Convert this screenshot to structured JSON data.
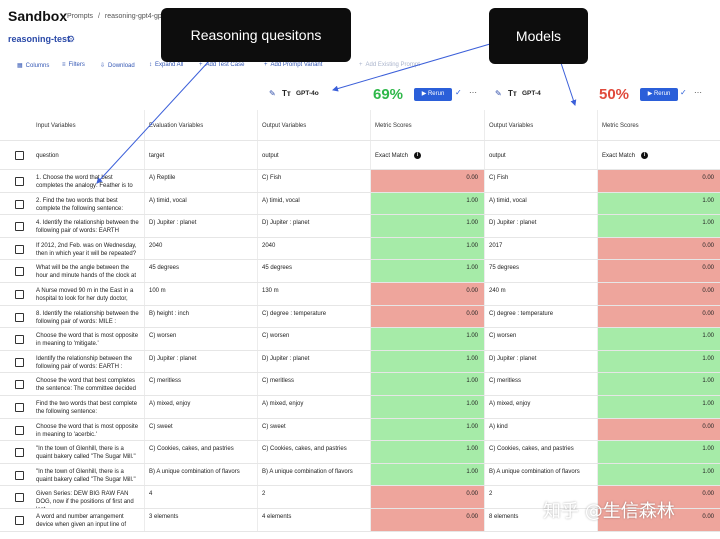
{
  "app": {
    "title": "Sandbox",
    "breadcrumb_root": "Prompts",
    "breadcrumb_sep": "/",
    "breadcrumb_page": "reasoning-gpt4-gpt",
    "project_name": "reasoning-test",
    "project_icon": "gear-icon"
  },
  "toolbar": {
    "columns": "Columns",
    "filters": "Filters",
    "download": "Download",
    "expand": "Expand All",
    "add_case": "Add Test Case",
    "add_prompt": "Add Prompt Variant",
    "add_existing": "Add Existing Prompt"
  },
  "models": [
    {
      "name": "GPT-4o",
      "score": "69%",
      "score_color": "#2fb84a",
      "rerun": "Rerun"
    },
    {
      "name": "GPT-4",
      "score": "50%",
      "score_color": "#e04a3c",
      "rerun": "Rerun"
    }
  ],
  "columns": {
    "input": "Input Variables",
    "eval": "Evaluation Variables",
    "output": "Output Variables",
    "metric": "Metric Scores"
  },
  "subcolumns": {
    "question": "question",
    "target": "target",
    "output": "output",
    "exact_match": "Exact Match"
  },
  "rows": [
    {
      "q": "1. Choose the word that best completes the analogy: Feather is to",
      "t": "A) Reptile",
      "o1": "C) Fish",
      "s1": "0.00",
      "o2": "C) Fish",
      "s2": "0.00"
    },
    {
      "q": "2. Find the two words that best complete the following sentence:",
      "t": "A) timid, vocal",
      "o1": "A) timid, vocal",
      "s1": "1.00",
      "o2": "A) timid, vocal",
      "s2": "1.00"
    },
    {
      "q": "4. Identify the relationship between the following pair of words: EARTH",
      "t": "D) Jupiter : planet",
      "o1": "D) Jupiter : planet",
      "s1": "1.00",
      "o2": "D) Jupiter : planet",
      "s2": "1.00"
    },
    {
      "q": "If 2012, 2nd Feb. was on Wednesday, then in which year it will be repeated?",
      "t": "2040",
      "o1": "2040",
      "s1": "1.00",
      "o2": "2017",
      "s2": "0.00"
    },
    {
      "q": "What will be the angle between the hour and minute hands of the clock at",
      "t": "45 degrees",
      "o1": "45 degrees",
      "s1": "1.00",
      "o2": "75 degrees",
      "s2": "0.00"
    },
    {
      "q": "A Nurse moved 90 m in the East in a hospital to look for her duty doctor,",
      "t": "100 m",
      "o1": "130 m",
      "s1": "0.00",
      "o2": "240 m",
      "s2": "0.00"
    },
    {
      "q": "8. Identify the relationship between the following pair of words: MILE :",
      "t": "B) height : inch",
      "o1": "C) degree : temperature",
      "s1": "0.00",
      "o2": "C) degree : temperature",
      "s2": "0.00"
    },
    {
      "q": "Choose the word that is most opposite in meaning to 'mitigate.'",
      "t": "C) worsen",
      "o1": "C) worsen",
      "s1": "1.00",
      "o2": "C) worsen",
      "s2": "1.00"
    },
    {
      "q": "Identify the relationship between the following pair of words: EARTH :",
      "t": "D) Jupiter : planet",
      "o1": "D) Jupiter : planet",
      "s1": "1.00",
      "o2": "D) Jupiter : planet",
      "s2": "1.00"
    },
    {
      "q": "Choose the word that best completes the sentence: The committee decided",
      "t": "C) meritless",
      "o1": "C) meritless",
      "s1": "1.00",
      "o2": "C) meritless",
      "s2": "1.00"
    },
    {
      "q": "Find the two words that best complete the following sentence:",
      "t": "A) mixed, enjoy",
      "o1": "A) mixed, enjoy",
      "s1": "1.00",
      "o2": "A) mixed, enjoy",
      "s2": "1.00"
    },
    {
      "q": "Choose the word that is most opposite in meaning to 'acerbic.'",
      "t": "C) sweet",
      "o1": "C) sweet",
      "s1": "1.00",
      "o2": "A) kind",
      "s2": "0.00"
    },
    {
      "q": "\"In the town of Glenhill, there is a quaint bakery called \"The Sugar Mill.\"",
      "t": "C) Cookies, cakes, and pastries",
      "o1": "C) Cookies, cakes, and pastries",
      "s1": "1.00",
      "o2": "C) Cookies, cakes, and pastries",
      "s2": "1.00"
    },
    {
      "q": "\"In the town of Glenhill, there is a quaint bakery called \"The Sugar Mill.\"",
      "t": "B) A unique combination of flavors",
      "o1": "B) A unique combination of flavors",
      "s1": "1.00",
      "o2": "B) A unique combination of flavors",
      "s2": "1.00"
    },
    {
      "q": "Given Series: DEW BIG RAW FAN DOG, now if the positions of first and last",
      "t": "4",
      "o1": "2",
      "s1": "0.00",
      "o2": "2",
      "s2": "0.00"
    },
    {
      "q": "A word and number arrangement device when given an input line of",
      "t": "3 elements",
      "o1": "4 elements",
      "s1": "0.00",
      "o2": "8 elements",
      "s2": "0.00"
    }
  ],
  "annotations": {
    "left": "Reasoning quesitons",
    "right": "Models"
  },
  "watermark": "知乎 @生信森林"
}
